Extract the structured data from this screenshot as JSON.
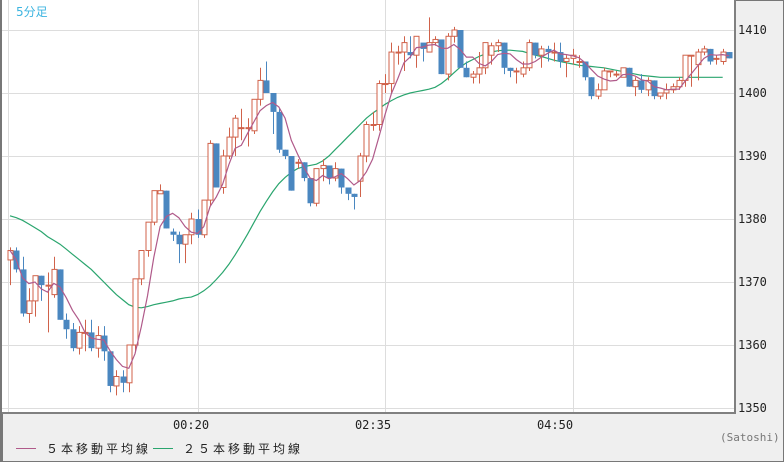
{
  "chart_data": {
    "type": "candlestick",
    "title": "5分足",
    "timeframe_label": "5分足",
    "xlabel": "",
    "ylabel": "",
    "ylim": [
      1349.5,
      1414.5
    ],
    "y_ticks": [
      1350,
      1360,
      1370,
      1380,
      1390,
      1400,
      1410
    ],
    "x_ticks": [
      {
        "label": "00:20",
        "index": 30
      },
      {
        "label": "02:35",
        "index": 60
      },
      {
        "label": "04:50",
        "index": 90
      }
    ],
    "grid": true,
    "legend_position": "bottom-left",
    "legend": [
      {
        "name": "５本移動平均線",
        "color": "#b05a8a"
      },
      {
        "name": "２５本移動平均線",
        "color": "#2aa56e"
      }
    ],
    "colors": {
      "up": "#d0624a",
      "down": "#4a87c0",
      "ma5": "#b05a8a",
      "ma25": "#2aa56e",
      "grid": "#dddddd",
      "timeframe": "#3cb4e0"
    },
    "ohlc": [
      [
        1373.5,
        1375.5,
        1369.5,
        1375.0
      ],
      [
        1375.0,
        1375.5,
        1371.5,
        1372.0
      ],
      [
        1372.0,
        1374.0,
        1364.5,
        1365.0
      ],
      [
        1365.0,
        1369.0,
        1363.5,
        1367.0
      ],
      [
        1367.0,
        1371.0,
        1364.5,
        1371.0
      ],
      [
        1371.0,
        1371.0,
        1367.0,
        1369.5
      ],
      [
        1369.5,
        1371.5,
        1362.0,
        1369.5
      ],
      [
        1368.0,
        1374.0,
        1367.5,
        1372.0
      ],
      [
        1372.0,
        1372.0,
        1364.0,
        1364.0
      ],
      [
        1364.0,
        1365.0,
        1361.0,
        1362.5
      ],
      [
        1362.5,
        1363.5,
        1359.0,
        1359.5
      ],
      [
        1359.5,
        1363.0,
        1358.5,
        1362.0
      ],
      [
        1362.0,
        1364.0,
        1359.0,
        1362.0
      ],
      [
        1362.0,
        1364.0,
        1359.0,
        1359.5
      ],
      [
        1359.5,
        1363.0,
        1358.0,
        1361.5
      ],
      [
        1361.5,
        1363.0,
        1357.5,
        1359.0
      ],
      [
        1359.0,
        1359.0,
        1352.5,
        1353.5
      ],
      [
        1353.5,
        1356.0,
        1352.0,
        1355.0
      ],
      [
        1355.0,
        1356.0,
        1352.5,
        1354.0
      ],
      [
        1354.0,
        1360.0,
        1352.5,
        1360.0
      ],
      [
        1360.0,
        1370.5,
        1359.0,
        1370.5
      ],
      [
        1370.5,
        1375.0,
        1369.5,
        1375.0
      ],
      [
        1375.0,
        1379.5,
        1374.0,
        1379.5
      ],
      [
        1379.5,
        1384.0,
        1379.0,
        1384.5
      ],
      [
        1384.0,
        1385.5,
        1384.0,
        1384.5
      ],
      [
        1384.5,
        1384.5,
        1378.5,
        1378.5
      ],
      [
        1378.0,
        1378.5,
        1376.5,
        1377.5
      ],
      [
        1377.5,
        1378.0,
        1373.0,
        1376.0
      ],
      [
        1376.0,
        1377.5,
        1373.0,
        1377.5
      ],
      [
        1377.5,
        1381.0,
        1376.0,
        1380.0
      ],
      [
        1380.0,
        1381.5,
        1377.0,
        1377.5
      ],
      [
        1377.5,
        1383.0,
        1377.0,
        1383.0
      ],
      [
        1383.0,
        1392.5,
        1382.0,
        1392.0
      ],
      [
        1392.0,
        1392.0,
        1385.5,
        1385.0
      ],
      [
        1385.0,
        1391.0,
        1384.0,
        1390.0
      ],
      [
        1390.0,
        1394.5,
        1389.5,
        1393.0
      ],
      [
        1393.0,
        1396.5,
        1390.0,
        1396.0
      ],
      [
        1394.5,
        1397.5,
        1392.5,
        1394.5
      ],
      [
        1394.5,
        1396.0,
        1391.5,
        1394.5
      ],
      [
        1394.0,
        1399.0,
        1393.5,
        1399.0
      ],
      [
        1399.0,
        1404.0,
        1398.0,
        1402.0
      ],
      [
        1402.0,
        1405.0,
        1400.0,
        1400.0
      ],
      [
        1400.0,
        1398.0,
        1393.5,
        1397.0
      ],
      [
        1397.0,
        1397.5,
        1390.5,
        1391.0
      ],
      [
        1391.0,
        1391.0,
        1389.5,
        1390.0
      ],
      [
        1390.0,
        1390.0,
        1384.5,
        1384.5
      ],
      [
        1389.0,
        1389.5,
        1388.0,
        1389.0
      ],
      [
        1389.0,
        1389.0,
        1386.0,
        1386.5
      ],
      [
        1386.5,
        1386.5,
        1382.0,
        1382.5
      ],
      [
        1382.5,
        1388.0,
        1382.0,
        1388.0
      ],
      [
        1388.0,
        1389.5,
        1386.0,
        1388.5
      ],
      [
        1388.5,
        1388.5,
        1385.5,
        1386.5
      ],
      [
        1386.5,
        1389.0,
        1386.0,
        1388.0
      ],
      [
        1388.0,
        1388.0,
        1384.0,
        1385.0
      ],
      [
        1385.0,
        1385.0,
        1383.0,
        1384.0
      ],
      [
        1384.0,
        1384.0,
        1381.5,
        1383.5
      ],
      [
        1386.0,
        1390.5,
        1383.5,
        1390.0
      ],
      [
        1390.0,
        1395.5,
        1389.0,
        1395.0
      ],
      [
        1395.0,
        1397.0,
        1394.0,
        1395.0
      ],
      [
        1395.0,
        1402.0,
        1394.0,
        1401.5
      ],
      [
        1401.5,
        1403.0,
        1400.0,
        1401.5
      ],
      [
        1401.5,
        1408.0,
        1400.0,
        1406.5
      ],
      [
        1406.5,
        1407.5,
        1404.5,
        1406.5
      ],
      [
        1406.5,
        1409.0,
        1403.5,
        1408.0
      ],
      [
        1406.5,
        1409.0,
        1405.5,
        1406.0
      ],
      [
        1406.0,
        1409.0,
        1404.0,
        1409.0
      ],
      [
        1408.0,
        1407.0,
        1405.0,
        1407.0
      ],
      [
        1406.5,
        1412.0,
        1406.5,
        1408.0
      ],
      [
        1408.0,
        1409.0,
        1407.5,
        1408.5
      ],
      [
        1408.5,
        1408.5,
        1403.0,
        1403.0
      ],
      [
        1403.0,
        1409.5,
        1402.0,
        1409.0
      ],
      [
        1409.0,
        1410.5,
        1408.0,
        1410.0
      ],
      [
        1410.0,
        1410.0,
        1404.0,
        1404.0
      ],
      [
        1404.0,
        1405.0,
        1402.5,
        1402.5
      ],
      [
        1402.5,
        1403.5,
        1401.5,
        1403.0
      ],
      [
        1403.0,
        1406.5,
        1401.5,
        1404.0
      ],
      [
        1404.0,
        1408.0,
        1403.0,
        1408.0
      ],
      [
        1406.0,
        1408.0,
        1404.5,
        1407.5
      ],
      [
        1407.5,
        1408.5,
        1406.5,
        1408.0
      ],
      [
        1408.0,
        1408.0,
        1403.0,
        1404.0
      ],
      [
        1404.0,
        1404.0,
        1402.5,
        1403.5
      ],
      [
        1403.5,
        1404.0,
        1401.5,
        1403.5
      ],
      [
        1403.0,
        1405.0,
        1402.5,
        1404.0
      ],
      [
        1404.0,
        1408.5,
        1403.5,
        1408.0
      ],
      [
        1408.0,
        1408.0,
        1405.5,
        1406.0
      ],
      [
        1406.0,
        1407.5,
        1404.0,
        1407.0
      ],
      [
        1407.0,
        1407.5,
        1405.0,
        1406.5
      ],
      [
        1406.5,
        1408.0,
        1405.0,
        1406.5
      ],
      [
        1406.5,
        1408.0,
        1404.0,
        1405.0
      ],
      [
        1405.0,
        1406.0,
        1402.5,
        1405.5
      ],
      [
        1405.5,
        1407.0,
        1404.5,
        1406.0
      ],
      [
        1405.0,
        1406.0,
        1404.0,
        1405.0
      ],
      [
        1405.0,
        1405.0,
        1402.0,
        1402.5
      ],
      [
        1402.5,
        1402.5,
        1399.0,
        1399.5
      ],
      [
        1399.5,
        1401.5,
        1399.0,
        1400.5
      ],
      [
        1400.5,
        1404.0,
        1400.5,
        1403.5
      ],
      [
        1403.5,
        1403.5,
        1402.5,
        1403.5
      ],
      [
        1403.0,
        1403.5,
        1402.5,
        1403.0
      ],
      [
        1402.5,
        1404.0,
        1402.5,
        1404.0
      ],
      [
        1404.0,
        1404.0,
        1401.0,
        1401.0
      ],
      [
        1401.0,
        1402.5,
        1399.5,
        1402.0
      ],
      [
        1402.0,
        1403.0,
        1400.0,
        1400.5
      ],
      [
        1400.5,
        1402.5,
        1399.5,
        1402.0
      ],
      [
        1402.0,
        1402.0,
        1399.0,
        1399.5
      ],
      [
        1399.5,
        1400.0,
        1399.0,
        1400.0
      ],
      [
        1400.0,
        1401.5,
        1399.0,
        1400.5
      ],
      [
        1400.5,
        1401.5,
        1400.0,
        1401.0
      ],
      [
        1401.0,
        1402.5,
        1400.5,
        1402.0
      ],
      [
        1402.0,
        1406.0,
        1401.0,
        1406.0
      ],
      [
        1406.0,
        1406.0,
        1401.0,
        1406.0
      ],
      [
        1404.5,
        1407.0,
        1402.0,
        1406.5
      ],
      [
        1406.5,
        1407.5,
        1406.0,
        1407.0
      ],
      [
        1407.0,
        1407.0,
        1404.5,
        1405.0
      ],
      [
        1405.5,
        1406.0,
        1404.5,
        1405.5
      ],
      [
        1405.0,
        1407.0,
        1404.5,
        1406.5
      ],
      [
        1406.5,
        1406.5,
        1405.5,
        1405.5
      ]
    ],
    "ma25_start": [
      1380.5,
      1380.2,
      1379.8,
      1379.2,
      1378.6,
      1378.0,
      1377.2,
      1376.6,
      1376.0,
      1375.2,
      1374.4,
      1373.6,
      1372.8,
      1372.0,
      1371.0,
      1370.0,
      1369.0,
      1368.0,
      1367.2,
      1366.4,
      1366.0,
      1365.9,
      1366.1,
      1366.4,
      1366.6,
      1366.8,
      1367.0,
      1367.3,
      1367.5,
      1367.6,
      1368.0,
      1368.6,
      1369.4,
      1370.4,
      1371.5,
      1372.8,
      1374.3,
      1375.9,
      1377.6,
      1379.4,
      1381.2,
      1382.8,
      1384.3,
      1385.6,
      1386.6,
      1387.4,
      1388.0,
      1388.3,
      1388.5,
      1388.7,
      1389.2,
      1390.0,
      1391.0,
      1392.0,
      1393.0,
      1394.0,
      1395.0,
      1396.0,
      1396.8,
      1397.5,
      1398.2,
      1398.8,
      1399.3,
      1399.7,
      1400.0,
      1400.2,
      1400.4,
      1400.6,
      1400.9,
      1401.5,
      1402.3,
      1403.2,
      1404.1,
      1404.8,
      1405.3,
      1405.8,
      1406.2,
      1406.5,
      1406.7,
      1406.8,
      1406.8,
      1406.7,
      1406.6,
      1406.3,
      1406.0,
      1405.8,
      1405.5,
      1405.2,
      1405.0,
      1404.8,
      1404.6,
      1404.4,
      1404.3,
      1404.2,
      1404.1,
      1404.0,
      1403.8,
      1403.6,
      1403.4,
      1403.2,
      1403.0,
      1402.8,
      1402.7,
      1402.6,
      1402.5,
      1402.5,
      1402.5,
      1402.5,
      1402.5,
      1402.5,
      1402.5,
      1402.5,
      1402.5,
      1402.5,
      1402.5
    ]
  },
  "ui": {
    "timeframe": "5分足",
    "y_axis_labels": [
      "1410",
      "1400",
      "1390",
      "1380",
      "1370",
      "1360",
      "1350"
    ],
    "x_axis_labels": [
      "00:20",
      "02:35",
      "04:50"
    ],
    "legend": {
      "ma5_label": "５本移動平均線",
      "ma25_label": "２５本移動平均線"
    },
    "credit": "(Satoshi)"
  }
}
